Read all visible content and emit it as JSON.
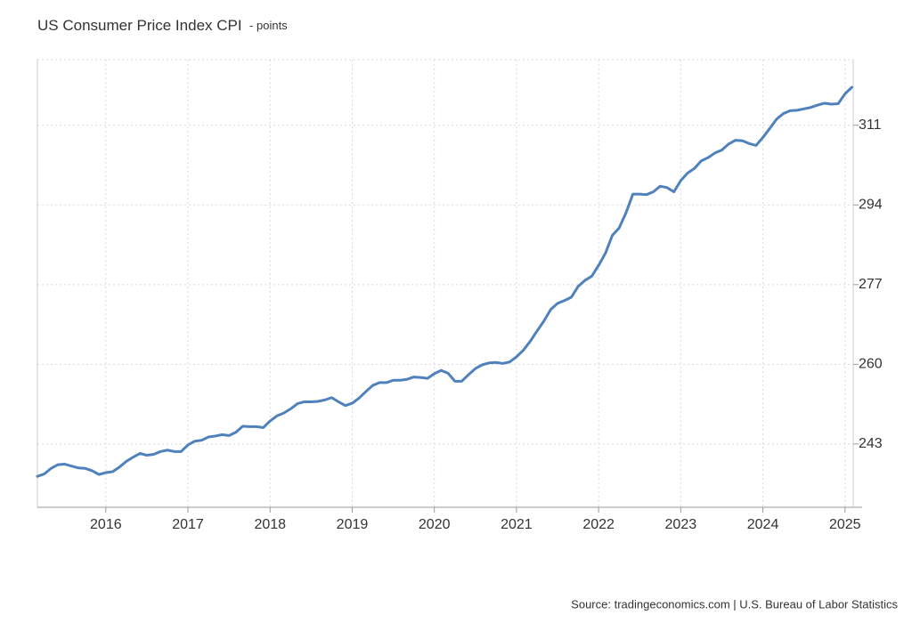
{
  "chart_data": {
    "type": "line",
    "title": "US Consumer Price Index CPI",
    "subtitle": "- points",
    "source": "Source: tradingeconomics.com | U.S. Bureau of Labor Statistics",
    "x": [
      2015.167,
      2015.25,
      2015.333,
      2015.417,
      2015.5,
      2015.583,
      2015.667,
      2015.75,
      2015.833,
      2015.917,
      2016,
      2016.083,
      2016.167,
      2016.25,
      2016.333,
      2016.417,
      2016.5,
      2016.583,
      2016.667,
      2016.75,
      2016.833,
      2016.917,
      2017,
      2017.083,
      2017.167,
      2017.25,
      2017.333,
      2017.417,
      2017.5,
      2017.583,
      2017.667,
      2017.75,
      2017.833,
      2017.917,
      2018,
      2018.083,
      2018.167,
      2018.25,
      2018.333,
      2018.417,
      2018.5,
      2018.583,
      2018.667,
      2018.75,
      2018.833,
      2018.917,
      2019,
      2019.083,
      2019.167,
      2019.25,
      2019.333,
      2019.417,
      2019.5,
      2019.583,
      2019.667,
      2019.75,
      2019.833,
      2019.917,
      2020,
      2020.083,
      2020.167,
      2020.25,
      2020.333,
      2020.417,
      2020.5,
      2020.583,
      2020.667,
      2020.75,
      2020.833,
      2020.917,
      2021,
      2021.083,
      2021.167,
      2021.25,
      2021.333,
      2021.417,
      2021.5,
      2021.583,
      2021.667,
      2021.75,
      2021.833,
      2021.917,
      2022,
      2022.083,
      2022.167,
      2022.25,
      2022.333,
      2022.417,
      2022.5,
      2022.583,
      2022.667,
      2022.75,
      2022.833,
      2022.917,
      2023,
      2023.083,
      2023.167,
      2023.25,
      2023.333,
      2023.417,
      2023.5,
      2023.583,
      2023.667,
      2023.75,
      2023.833,
      2023.917,
      2024,
      2024.083,
      2024.167,
      2024.25,
      2024.333,
      2024.417,
      2024.5,
      2024.583,
      2024.667,
      2024.75,
      2024.833,
      2024.917,
      2025,
      2025.083
    ],
    "series": [
      {
        "name": "CPI",
        "color": "#4f81bd",
        "values": [
          236.1,
          236.6,
          237.8,
          238.6,
          238.7,
          238.3,
          237.9,
          237.8,
          237.3,
          236.5,
          236.9,
          237.1,
          238.1,
          239.3,
          240.2,
          241.0,
          240.6,
          240.8,
          241.4,
          241.7,
          241.4,
          241.4,
          242.8,
          243.6,
          243.8,
          244.5,
          244.7,
          245.0,
          244.8,
          245.5,
          246.8,
          246.7,
          246.7,
          246.5,
          247.9,
          249.0,
          249.6,
          250.5,
          251.6,
          252.0,
          252.0,
          252.1,
          252.4,
          252.9,
          252.0,
          251.2,
          251.7,
          252.8,
          254.2,
          255.5,
          256.1,
          256.1,
          256.6,
          256.6,
          256.8,
          257.3,
          257.2,
          257.0,
          258.0,
          258.7,
          258.1,
          256.4,
          256.4,
          257.8,
          259.1,
          259.9,
          260.3,
          260.4,
          260.2,
          260.5,
          261.6,
          263.0,
          264.9,
          267.1,
          269.2,
          271.7,
          273.0,
          273.6,
          274.3,
          276.6,
          277.9,
          278.8,
          281.1,
          283.7,
          287.5,
          289.1,
          292.3,
          296.3,
          296.3,
          296.2,
          296.8,
          298.0,
          297.7,
          296.8,
          299.2,
          300.8,
          301.8,
          303.4,
          304.1,
          305.1,
          305.7,
          307.0,
          307.8,
          307.7,
          307.1,
          306.7,
          308.4,
          310.3,
          312.3,
          313.5,
          314.1,
          314.2,
          314.5,
          314.8,
          315.3,
          315.7,
          315.5,
          315.6,
          317.7,
          319.1
        ]
      }
    ],
    "xlim": [
      2015.167,
      2025.1
    ],
    "xticks": [
      2016,
      2017,
      2018,
      2019,
      2020,
      2021,
      2022,
      2023,
      2024,
      2025
    ],
    "ylim": [
      229.5,
      325
    ],
    "yticks": [
      243,
      260,
      277,
      294,
      311
    ],
    "grid": true
  }
}
